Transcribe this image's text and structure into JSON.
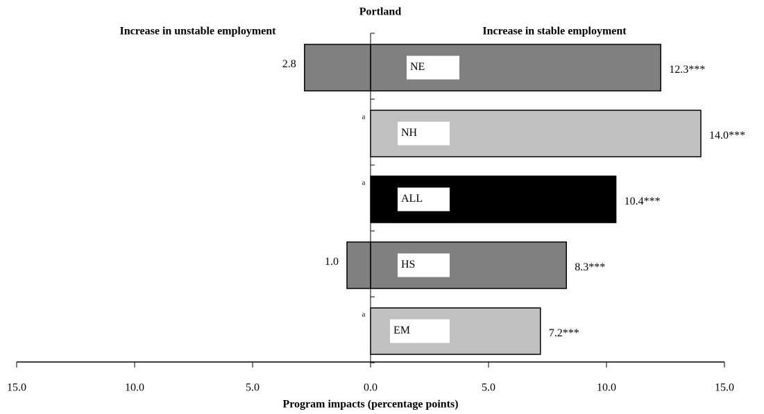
{
  "chart_data": {
    "type": "diverging-bar",
    "title": "Portland",
    "left_heading": "Increase in unstable employment",
    "right_heading": "Increase in stable employment",
    "x_label": "Program impacts (percentage points)",
    "categories": [
      "NE",
      "NH",
      "ALL",
      "HS",
      "EM"
    ],
    "colors": [
      "#808080",
      "#c0c0c0",
      "#000000",
      "#808080",
      "#c0c0c0"
    ],
    "series": [
      {
        "name": "Increase in stable employment",
        "values": [
          12.3,
          14.0,
          10.4,
          8.3,
          7.2
        ],
        "value_labels": [
          "12.3***",
          "14.0***",
          "10.4***",
          "8.3***",
          "7.2***"
        ]
      },
      {
        "name": "Increase in unstable employment",
        "values": [
          -2.8,
          null,
          null,
          -1.0,
          null
        ],
        "value_labels": [
          "2.8",
          "a",
          "a",
          "1.0",
          "a"
        ]
      }
    ],
    "xlim": [
      -15,
      15
    ],
    "xticks": [
      {
        "value": -15,
        "label": "15.0"
      },
      {
        "value": -10,
        "label": "10.0"
      },
      {
        "value": -5,
        "label": "5.0"
      },
      {
        "value": 0,
        "label": "0.0"
      },
      {
        "value": 5,
        "label": "5.0"
      },
      {
        "value": 10,
        "label": "10.0"
      },
      {
        "value": 15,
        "label": "15.0"
      }
    ],
    "grid": false
  }
}
